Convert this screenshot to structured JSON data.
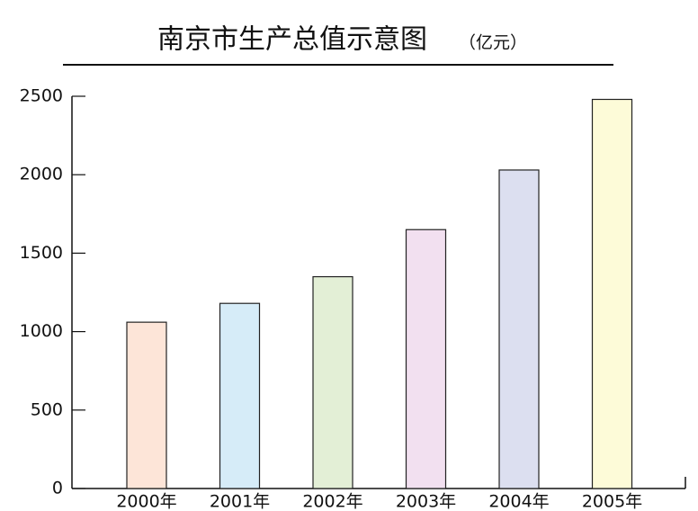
{
  "chart_data": {
    "type": "bar",
    "title": "南京市生产总值示意图",
    "subtitle": "（亿元）",
    "categories": [
      "2000年",
      "2001年",
      "2002年",
      "2003年",
      "2004年",
      "2005年"
    ],
    "values": [
      1060,
      1180,
      1350,
      1650,
      2030,
      2480
    ],
    "colors": [
      "#fde5d8",
      "#d6ecf8",
      "#e3efd6",
      "#f2e0f0",
      "#dcdff0",
      "#fdfbd8"
    ],
    "ylim": [
      0,
      2500
    ],
    "yticks": [
      0,
      500,
      1000,
      1500,
      2000,
      2500
    ]
  }
}
